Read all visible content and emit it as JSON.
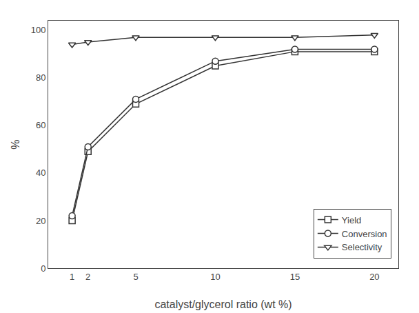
{
  "chart_data": {
    "type": "line",
    "x_label": "catalyst/glycerol ratio (wt %)",
    "y_label": "%",
    "x": [
      1,
      2,
      5,
      10,
      15,
      20
    ],
    "series": [
      {
        "name": "Yield",
        "color": "#333333",
        "marker": "square",
        "values": [
          20,
          49,
          69,
          85,
          91,
          91
        ]
      },
      {
        "name": "Conversion",
        "color": "#333333",
        "marker": "circle",
        "values": [
          22,
          51,
          71,
          87,
          92,
          92
        ]
      },
      {
        "name": "Selectivity",
        "color": "#333333",
        "marker": "triangle-down",
        "values": [
          94,
          95,
          97,
          97,
          97,
          98
        ]
      }
    ],
    "xlim": [
      -0.5,
      21.5
    ],
    "ylim": [
      0,
      104
    ],
    "xticks": [
      1,
      2,
      5,
      10,
      15,
      20
    ],
    "yticks": [
      0,
      20,
      40,
      60,
      80,
      100
    ],
    "grid": false,
    "legend": "lower right"
  }
}
